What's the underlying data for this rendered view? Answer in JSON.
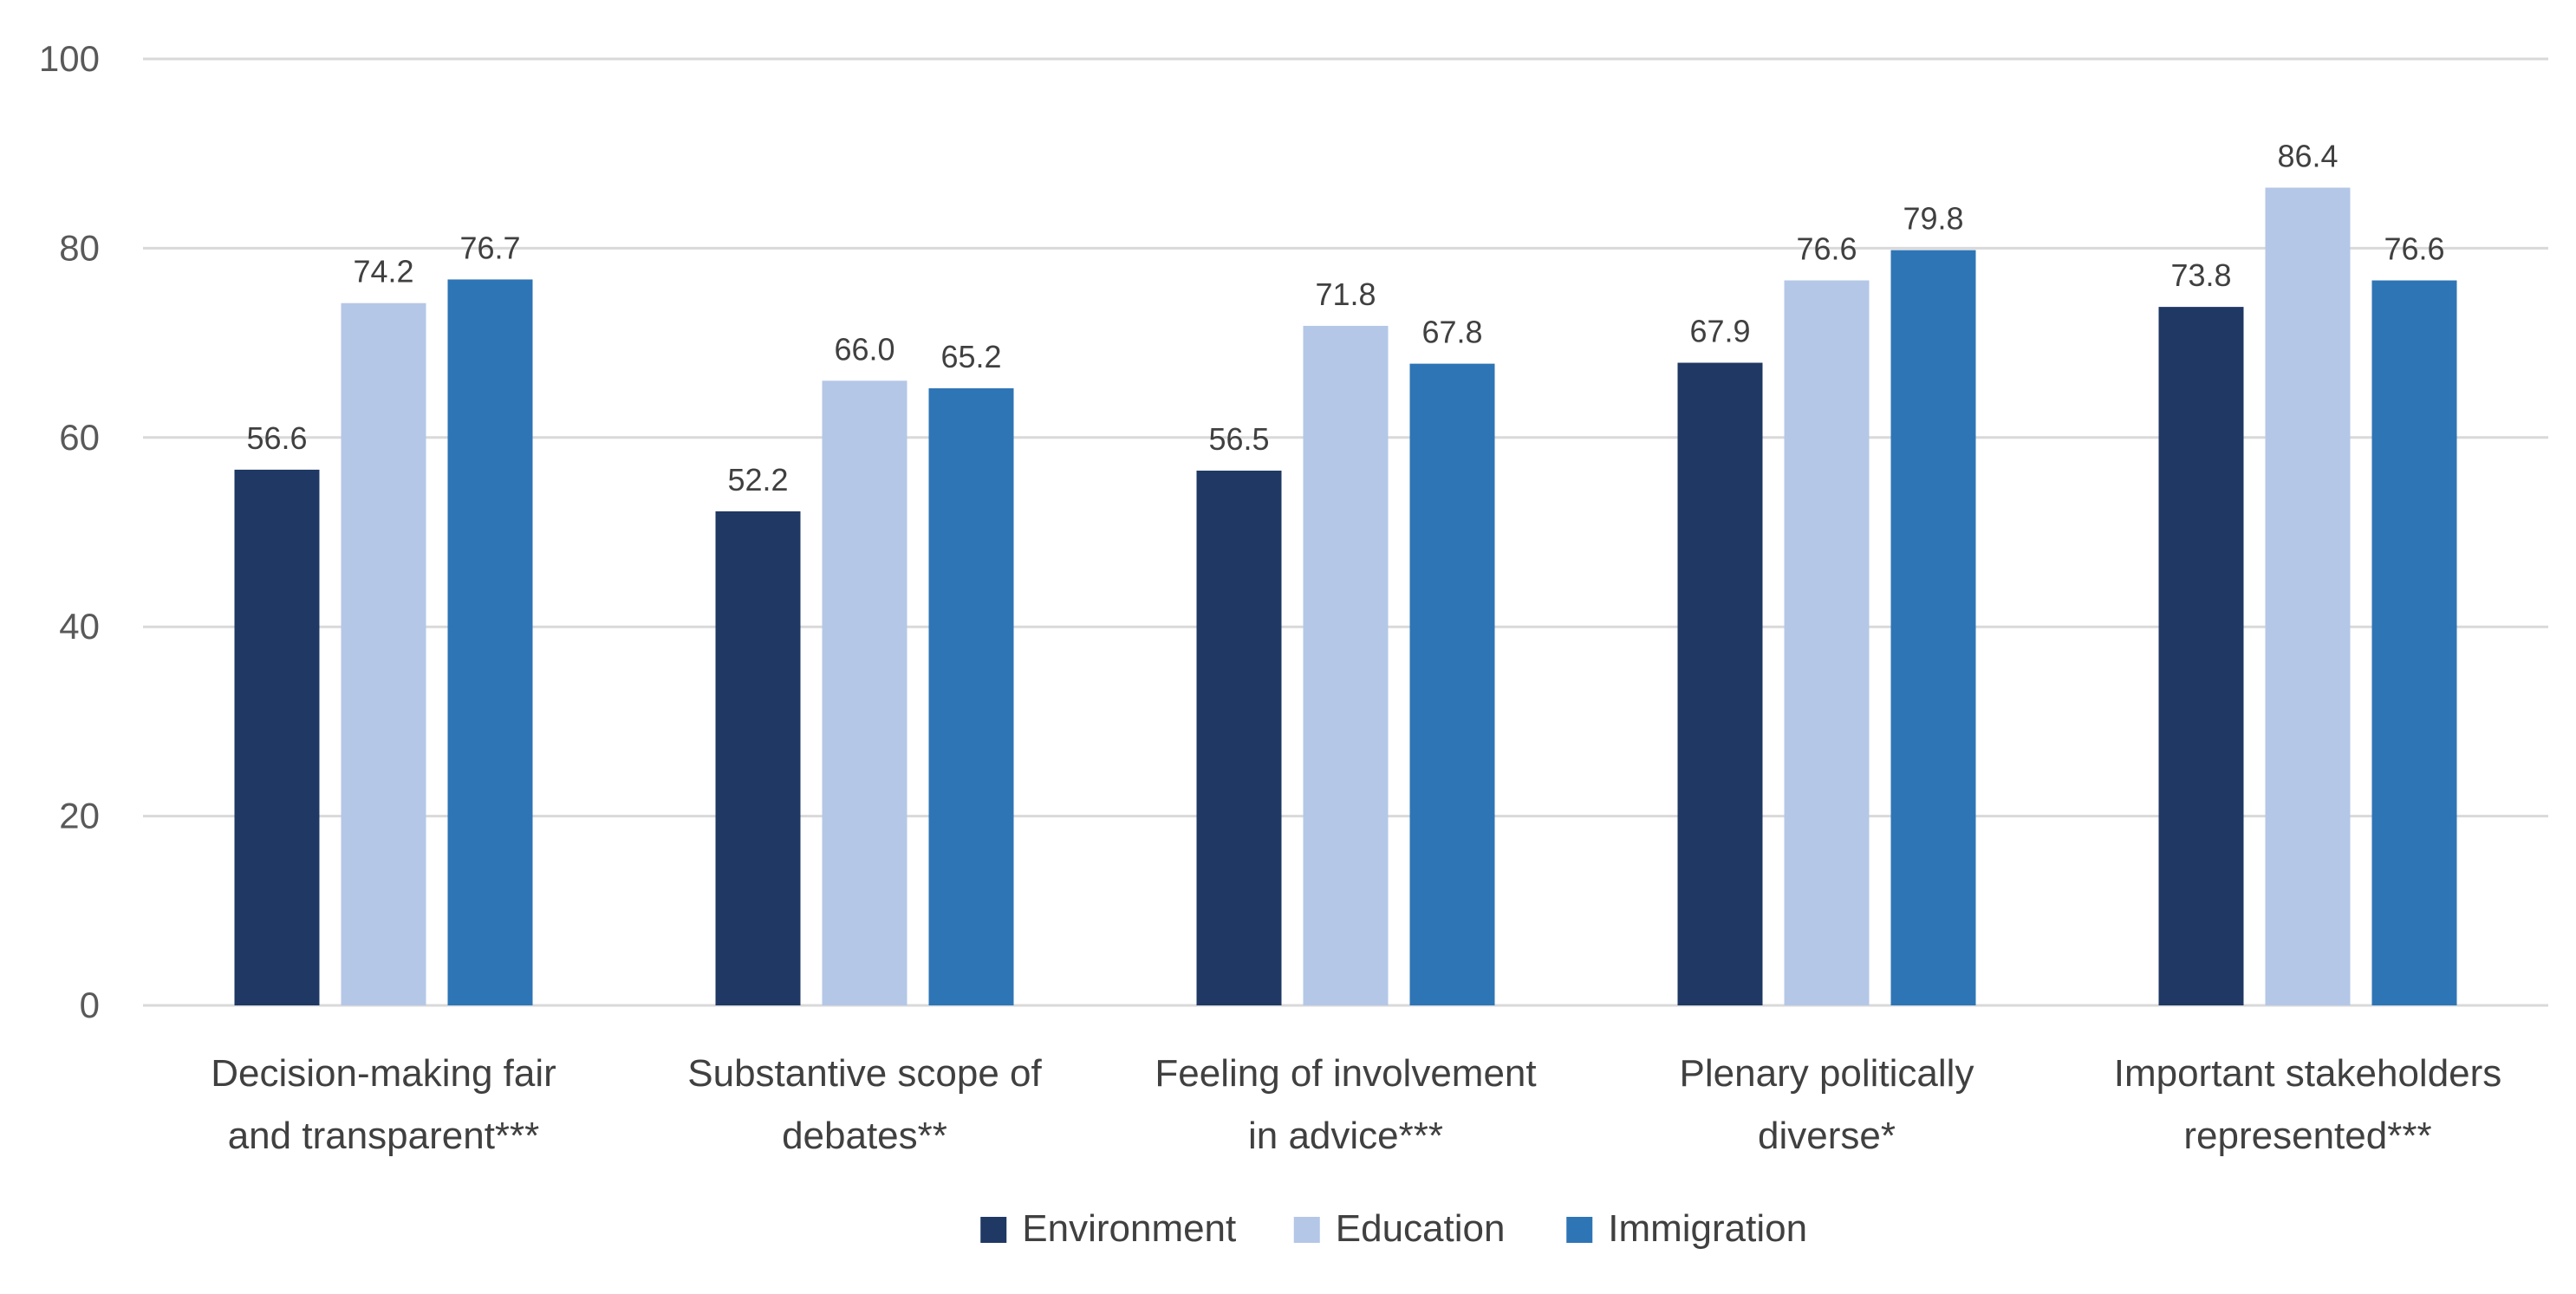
{
  "chart_data": {
    "type": "bar",
    "categories": [
      [
        "Decision-making fair",
        "and transparent***"
      ],
      [
        "Substantive scope of",
        "debates**"
      ],
      [
        "Feeling of involvement",
        "in advice***"
      ],
      [
        "Plenary politically",
        "diverse*"
      ],
      [
        "Important stakeholders",
        "represented***"
      ]
    ],
    "series": [
      {
        "name": "Environment",
        "color": "#1f3864",
        "values": [
          56.6,
          52.2,
          56.5,
          67.9,
          73.8
        ],
        "labels": [
          "56.6",
          "52.2",
          "56.5",
          "67.9",
          "73.8"
        ]
      },
      {
        "name": "Education",
        "color": "#b4c7e7",
        "values": [
          74.2,
          66.0,
          71.8,
          76.6,
          86.4
        ],
        "labels": [
          "74.2",
          "66.0",
          "71.8",
          "76.6",
          "86.4"
        ]
      },
      {
        "name": "Immigration",
        "color": "#2e75b6",
        "values": [
          76.7,
          65.2,
          67.8,
          79.8,
          76.6
        ],
        "labels": [
          "76.7",
          "65.2",
          "67.8",
          "79.8",
          "76.6"
        ]
      }
    ],
    "ylim": [
      0,
      100
    ],
    "yticks": [
      "0",
      "20",
      "40",
      "60",
      "80",
      "100"
    ],
    "grid": true,
    "legend": "bottom-center"
  }
}
